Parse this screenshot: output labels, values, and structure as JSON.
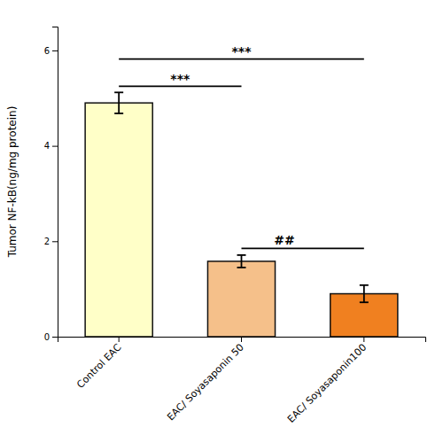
{
  "chart_data": {
    "type": "bar",
    "categories": [
      "Control EAC",
      "EAC/ Soyasaponin 50",
      "EAC/ Soyasaponin100"
    ],
    "values": [
      4.9,
      1.58,
      0.9
    ],
    "errors": [
      0.22,
      0.13,
      0.18
    ],
    "colors": [
      "#FFFFC8",
      "#F5C08A",
      "#F08020"
    ],
    "ylabel": "Tumor NF-kB(ng/mg protein)",
    "ylim": [
      0,
      6.5
    ],
    "yticks": [
      0,
      2,
      4,
      6
    ],
    "grid": false,
    "annotations": [
      {
        "text": "***",
        "x1": 0,
        "x2": 1,
        "y": 5.25,
        "text_y": 5.32
      },
      {
        "text": "***",
        "x1": 0,
        "x2": 2,
        "y": 5.82,
        "text_y": 5.89
      },
      {
        "text": "##",
        "x1": 1,
        "x2": 2,
        "y": 1.85,
        "text_y": 1.93,
        "text_x": 1.35
      }
    ]
  }
}
